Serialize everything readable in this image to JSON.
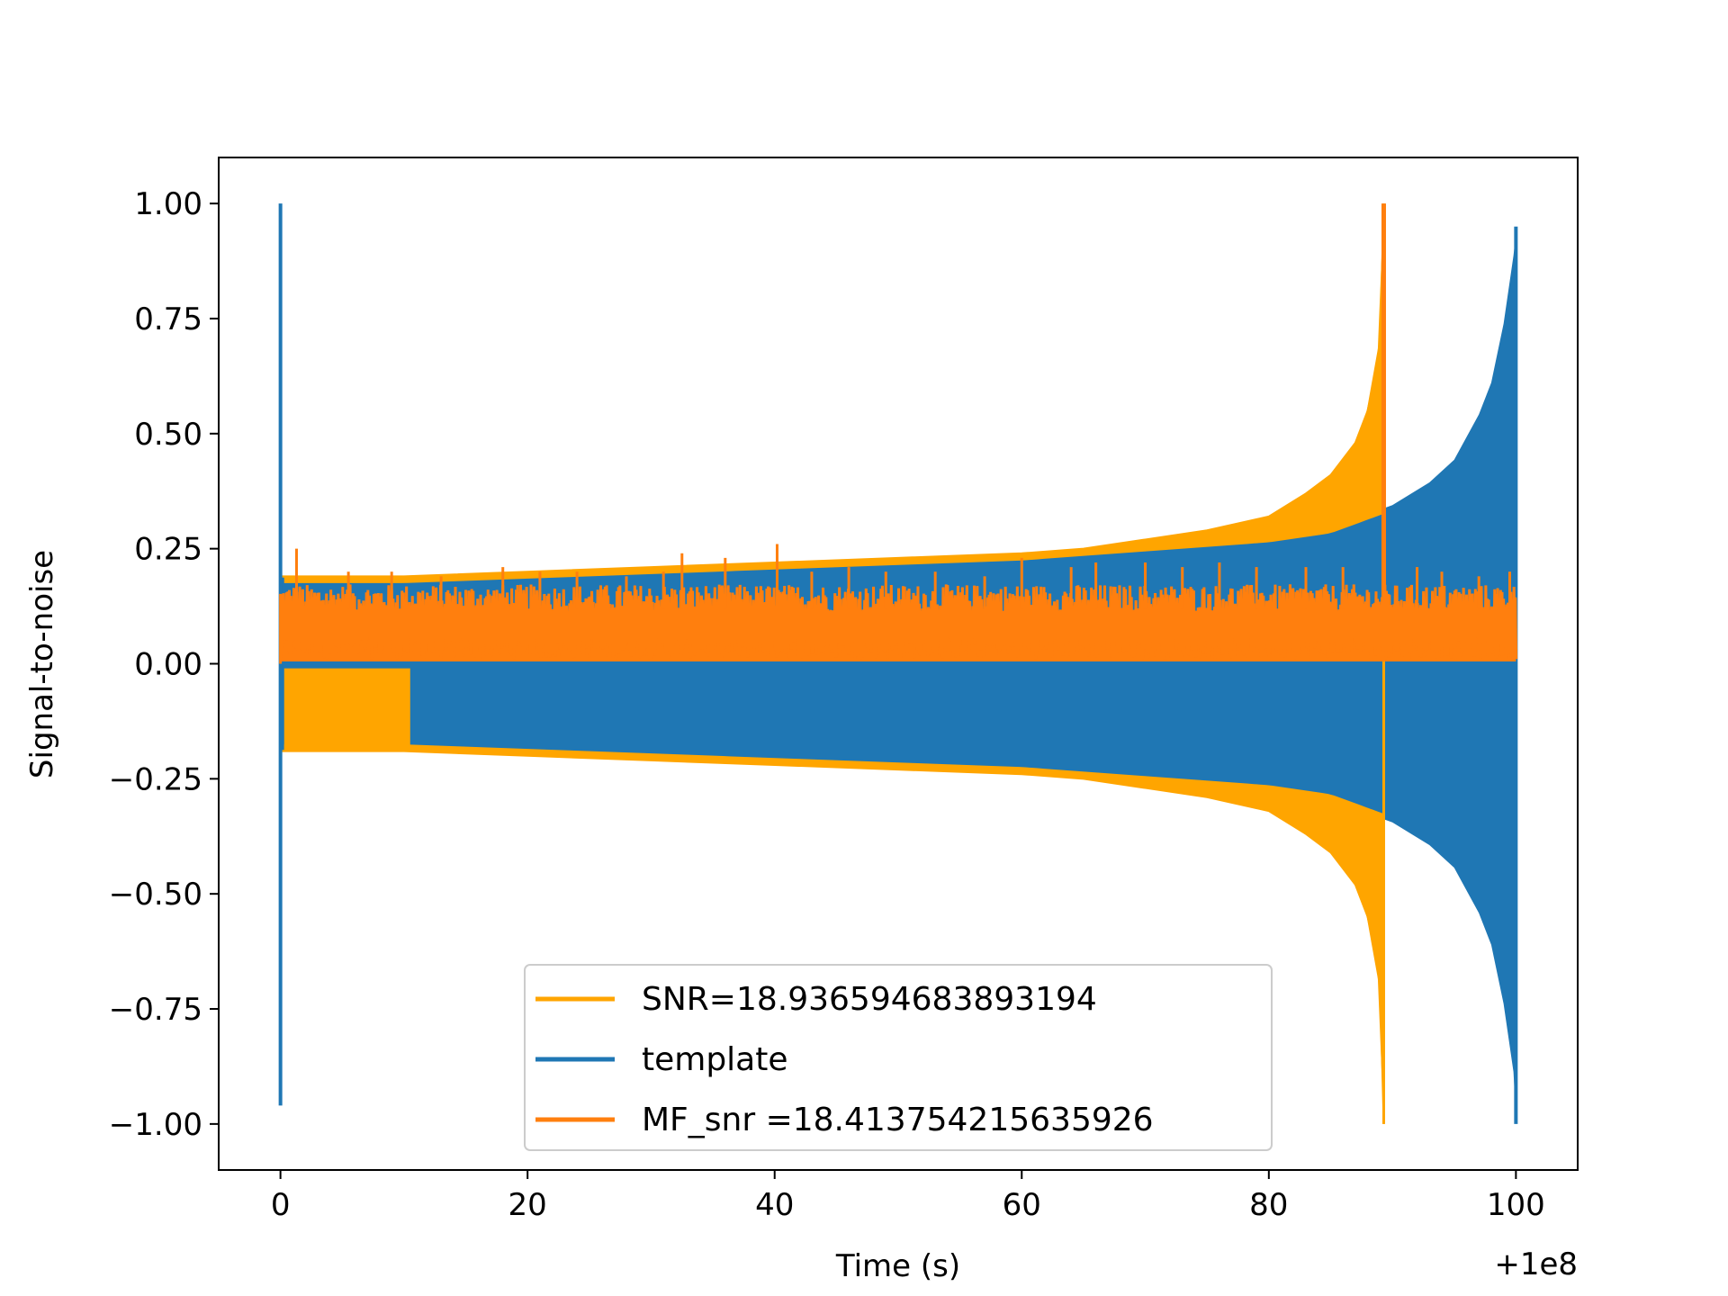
{
  "chart_data": {
    "type": "line",
    "xlabel": "Time (s)",
    "ylabel": "Signal-to-noise",
    "x_offset_label": "+1e8",
    "xlim": [
      -5,
      105
    ],
    "ylim": [
      -1.1,
      1.1
    ],
    "xticks": [
      0,
      20,
      40,
      60,
      80,
      100
    ],
    "xtick_labels": [
      "0",
      "20",
      "40",
      "60",
      "80",
      "100"
    ],
    "yticks": [
      1.0,
      0.75,
      0.5,
      0.25,
      0.0,
      -0.25,
      -0.5,
      -0.75,
      -1.0
    ],
    "ytick_labels": [
      "1.00",
      "0.75",
      "0.50",
      "0.25",
      "0.00",
      "−0.25",
      "−0.50",
      "−0.75",
      "−1.00"
    ],
    "grid": false,
    "legend_position": "lower-center",
    "series": [
      {
        "name": "SNR=18.936594683893194",
        "color": "#ffa500",
        "kind": "chirp-envelope",
        "x": [
          0,
          10,
          20,
          30,
          40,
          50,
          60,
          65,
          70,
          75,
          80,
          83,
          85,
          87,
          88,
          89,
          89.3
        ],
        "upper": [
          0.19,
          0.19,
          0.2,
          0.21,
          0.22,
          0.23,
          0.24,
          0.25,
          0.27,
          0.29,
          0.32,
          0.37,
          0.41,
          0.48,
          0.55,
          0.7,
          1.0
        ],
        "lower": [
          -0.19,
          -0.19,
          -0.2,
          -0.21,
          -0.22,
          -0.23,
          -0.24,
          -0.25,
          -0.27,
          -0.29,
          -0.32,
          -0.37,
          -0.41,
          -0.48,
          -0.55,
          -0.7,
          -1.0
        ],
        "early_inner_lower": -0.01,
        "early_inner_until": 10.5
      },
      {
        "name": "template",
        "color": "#1f77b4",
        "kind": "chirp-envelope",
        "x": [
          0,
          10,
          20,
          30,
          40,
          50,
          60,
          70,
          80,
          85,
          90,
          93,
          95,
          97,
          98,
          99,
          99.8,
          100
        ],
        "upper": [
          0.19,
          0.19,
          0.2,
          0.21,
          0.22,
          0.23,
          0.24,
          0.26,
          0.28,
          0.3,
          0.35,
          0.4,
          0.45,
          0.55,
          0.62,
          0.75,
          0.9,
          0.95
        ],
        "lower": [
          -0.19,
          -0.19,
          -0.2,
          -0.21,
          -0.22,
          -0.23,
          -0.24,
          -0.26,
          -0.28,
          -0.3,
          -0.35,
          -0.4,
          -0.45,
          -0.55,
          -0.62,
          -0.75,
          -0.9,
          -1.0
        ],
        "start_spike": {
          "x": 0,
          "ymax": 1.0,
          "ymin": -0.96
        }
      },
      {
        "name": " MF_snr =18.413754215635926",
        "color": "#ff7f0e",
        "kind": "noise-band",
        "x_range": [
          0,
          100
        ],
        "baseline": 0.0,
        "band_top": 0.15,
        "peak": {
          "x": 89.3,
          "y": 1.0
        },
        "spikes": [
          [
            1.3,
            0.25
          ],
          [
            5.5,
            0.2
          ],
          [
            9.0,
            0.2
          ],
          [
            13.0,
            0.19
          ],
          [
            18.0,
            0.21
          ],
          [
            21.0,
            0.2
          ],
          [
            24.0,
            0.2
          ],
          [
            28.0,
            0.19
          ],
          [
            31.0,
            0.2
          ],
          [
            32.5,
            0.24
          ],
          [
            36.0,
            0.23
          ],
          [
            40.2,
            0.26
          ],
          [
            43.0,
            0.2
          ],
          [
            46.0,
            0.21
          ],
          [
            49.0,
            0.2
          ],
          [
            53.0,
            0.2
          ],
          [
            57.0,
            0.19
          ],
          [
            60.0,
            0.23
          ],
          [
            64.0,
            0.21
          ],
          [
            66.0,
            0.22
          ],
          [
            70.0,
            0.22
          ],
          [
            73.0,
            0.21
          ],
          [
            76.0,
            0.22
          ],
          [
            79.0,
            0.21
          ],
          [
            83.0,
            0.21
          ],
          [
            86.0,
            0.21
          ],
          [
            92.0,
            0.21
          ],
          [
            94.0,
            0.2
          ],
          [
            97.0,
            0.19
          ],
          [
            99.5,
            0.2
          ]
        ]
      }
    ],
    "legend_order": [
      0,
      1,
      2
    ]
  }
}
